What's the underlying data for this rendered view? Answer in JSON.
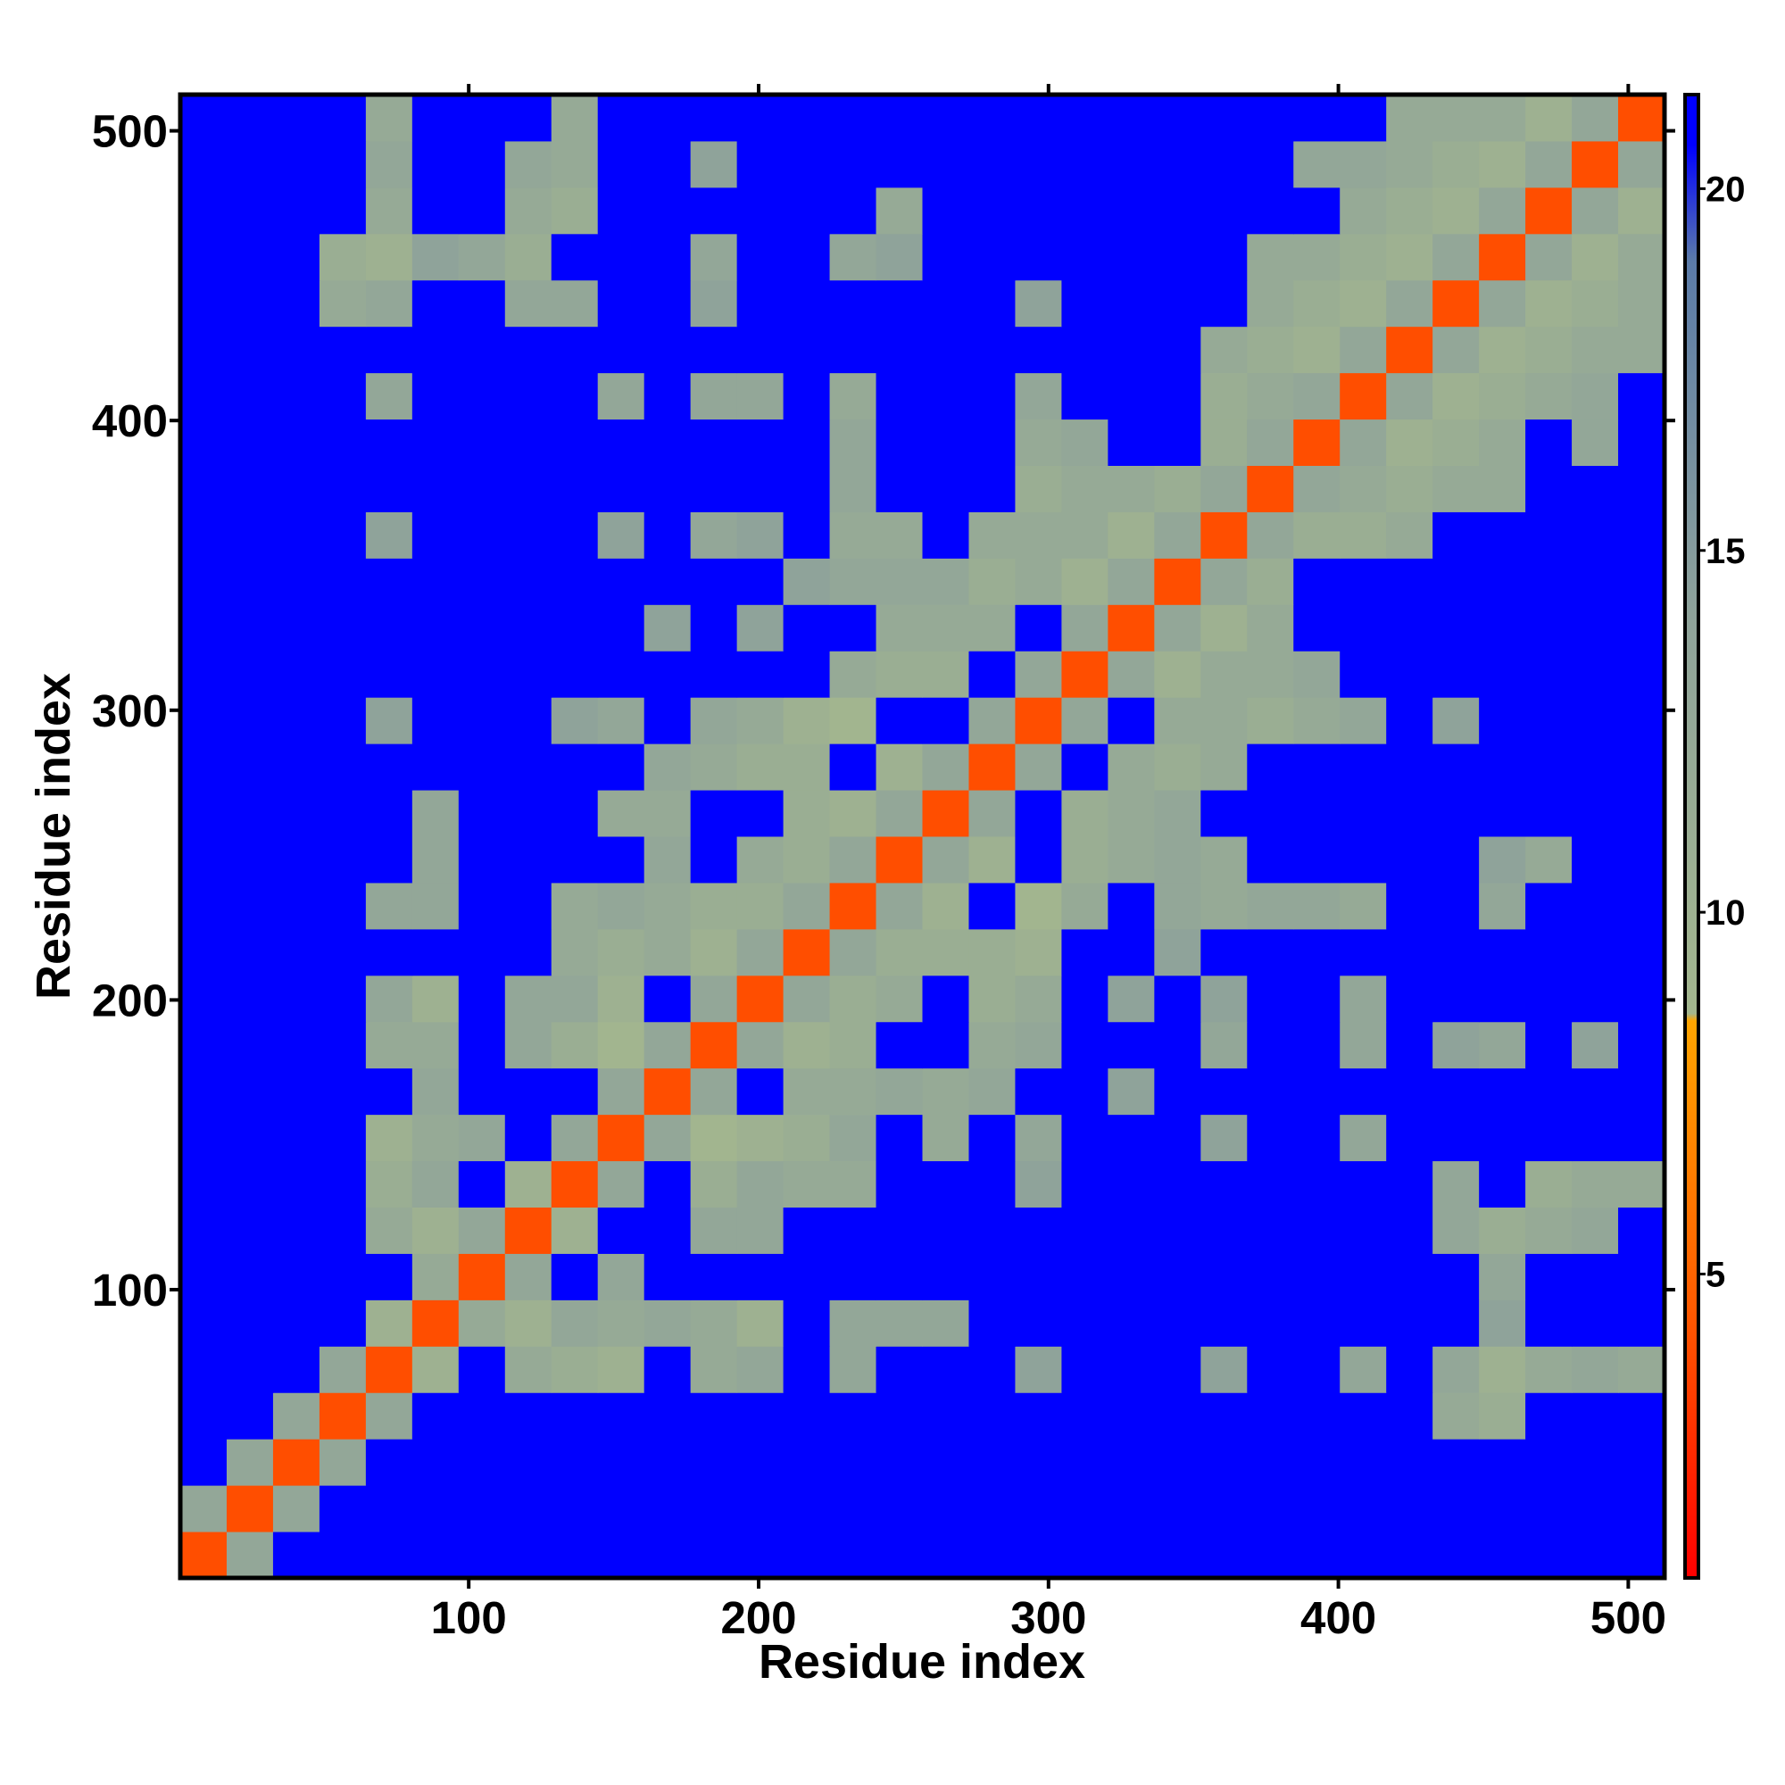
{
  "chart_data": {
    "type": "heatmap",
    "xlabel": "Residue index",
    "ylabel": "Residue index",
    "xlim": [
      0.5,
      512.5
    ],
    "ylim": [
      0.5,
      512.5
    ],
    "xticks": [
      100,
      200,
      300,
      400,
      500
    ],
    "yticks": [
      100,
      200,
      300,
      400,
      500
    ],
    "x_bins": [
      0.5,
      16.5,
      32.5,
      48.5,
      64.5,
      80.5,
      96.5,
      112.5,
      128.5,
      144.5,
      160.5,
      176.5,
      192.5,
      208.5,
      224.5,
      240.5,
      256.5,
      272.5,
      288.5,
      304.5,
      320.5,
      336.5,
      352.5,
      368.5,
      384.5,
      400.5,
      416.5,
      432.5,
      448.5,
      464.5,
      480.5,
      496.5,
      512.5
    ],
    "y_bins": [
      0.5,
      16.5,
      32.5,
      48.5,
      64.5,
      80.5,
      96.5,
      112.5,
      128.5,
      144.5,
      160.5,
      176.5,
      192.5,
      208.5,
      224.5,
      240.5,
      256.5,
      272.5,
      288.5,
      304.5,
      320.5,
      336.5,
      352.5,
      368.5,
      384.5,
      400.5,
      416.5,
      432.5,
      448.5,
      464.5,
      480.5,
      496.5,
      512.5
    ],
    "colorbar": {
      "clim": [
        0.8,
        21.3
      ],
      "ticks": [
        5,
        10,
        15,
        20
      ],
      "stops": [
        [
          0.8,
          "#ff0000"
        ],
        [
          4.5,
          "#ff5a00"
        ],
        [
          8.5,
          "#ffa500"
        ],
        [
          8.6,
          "#a3b68e"
        ],
        [
          14,
          "#8fa39a"
        ],
        [
          19,
          "#5b7ba8"
        ],
        [
          20.6,
          "#0000ff"
        ]
      ]
    },
    "z": [
      [
        4,
        13,
        21,
        21,
        21,
        21,
        21,
        21,
        21,
        21,
        21,
        21,
        21,
        21,
        21,
        21,
        21,
        21,
        21,
        21,
        21,
        21,
        21,
        21,
        21,
        21,
        21,
        21,
        21,
        21,
        21,
        21
      ],
      [
        13,
        4,
        13,
        21,
        21,
        21,
        21,
        21,
        21,
        21,
        21,
        21,
        21,
        21,
        21,
        21,
        21,
        21,
        21,
        21,
        21,
        21,
        21,
        21,
        21,
        21,
        21,
        21,
        21,
        21,
        21,
        21
      ],
      [
        21,
        13,
        4,
        13,
        21,
        21,
        21,
        21,
        21,
        21,
        21,
        21,
        21,
        21,
        21,
        21,
        21,
        21,
        21,
        21,
        21,
        21,
        21,
        21,
        21,
        21,
        21,
        21,
        21,
        21,
        21,
        21
      ],
      [
        21,
        21,
        13,
        4,
        13,
        21,
        21,
        21,
        21,
        21,
        21,
        21,
        21,
        21,
        21,
        21,
        21,
        21,
        21,
        21,
        21,
        21,
        21,
        21,
        21,
        21,
        21,
        12,
        11,
        21,
        21,
        21
      ],
      [
        21,
        21,
        21,
        13,
        4,
        10,
        21,
        12,
        11,
        10,
        21,
        12,
        13,
        21,
        13,
        21,
        21,
        21,
        14,
        21,
        21,
        21,
        14,
        21,
        21,
        13,
        21,
        13,
        10,
        12,
        13,
        12
      ],
      [
        21,
        21,
        21,
        21,
        10,
        4,
        12,
        10,
        13,
        12,
        13,
        12,
        10,
        21,
        13,
        13,
        13,
        21,
        21,
        21,
        21,
        21,
        21,
        21,
        21,
        21,
        21,
        21,
        14,
        21,
        21,
        21
      ],
      [
        21,
        21,
        21,
        21,
        21,
        12,
        4,
        13,
        21,
        13,
        21,
        21,
        21,
        21,
        21,
        21,
        21,
        21,
        21,
        21,
        21,
        21,
        21,
        21,
        21,
        21,
        21,
        21,
        13,
        21,
        21,
        21
      ],
      [
        21,
        21,
        21,
        21,
        12,
        10,
        13,
        4,
        10,
        21,
        21,
        13,
        13,
        21,
        21,
        21,
        21,
        21,
        21,
        21,
        21,
        21,
        21,
        21,
        21,
        21,
        21,
        13,
        11,
        12,
        13,
        21
      ],
      [
        21,
        21,
        21,
        21,
        11,
        13,
        21,
        10,
        4,
        13,
        21,
        11,
        13,
        12,
        12,
        21,
        21,
        21,
        14,
        21,
        21,
        21,
        21,
        21,
        21,
        21,
        21,
        13,
        21,
        11,
        12,
        12
      ],
      [
        21,
        21,
        21,
        21,
        10,
        12,
        13,
        21,
        13,
        4,
        13,
        9,
        10,
        11,
        13,
        21,
        12,
        21,
        13,
        21,
        21,
        21,
        14,
        21,
        21,
        13,
        21,
        21,
        21,
        21,
        21,
        21
      ],
      [
        21,
        21,
        21,
        21,
        21,
        13,
        21,
        21,
        21,
        13,
        4,
        13,
        21,
        12,
        12,
        13,
        12,
        13,
        21,
        21,
        14,
        21,
        21,
        21,
        21,
        21,
        21,
        21,
        21,
        21,
        21,
        21
      ],
      [
        21,
        21,
        21,
        21,
        12,
        12,
        21,
        13,
        11,
        9,
        13,
        4,
        13,
        10,
        11,
        21,
        21,
        12,
        13,
        21,
        21,
        21,
        13,
        21,
        21,
        13,
        21,
        14,
        13,
        21,
        14,
        21
      ],
      [
        21,
        21,
        21,
        21,
        13,
        10,
        21,
        13,
        13,
        10,
        21,
        13,
        4,
        13,
        11,
        12,
        21,
        11,
        12,
        21,
        14,
        21,
        14,
        21,
        21,
        13,
        21,
        21,
        21,
        21,
        21,
        21
      ],
      [
        21,
        21,
        21,
        21,
        21,
        21,
        21,
        21,
        12,
        11,
        12,
        10,
        13,
        4,
        13,
        11,
        11,
        11,
        10,
        21,
        21,
        14,
        21,
        21,
        21,
        21,
        21,
        21,
        21,
        21,
        21,
        21
      ],
      [
        21,
        21,
        21,
        21,
        13,
        13,
        21,
        21,
        12,
        13,
        12,
        11,
        11,
        13,
        4,
        13,
        10,
        21,
        9,
        12,
        21,
        13,
        12,
        13,
        13,
        12,
        21,
        21,
        13,
        21,
        21,
        21
      ],
      [
        21,
        21,
        21,
        21,
        21,
        13,
        21,
        21,
        21,
        21,
        13,
        21,
        12,
        11,
        13,
        4,
        13,
        10,
        21,
        11,
        12,
        13,
        12,
        21,
        21,
        21,
        21,
        21,
        14,
        12,
        21,
        21
      ],
      [
        21,
        21,
        21,
        21,
        21,
        13,
        21,
        21,
        21,
        12,
        12,
        21,
        21,
        11,
        10,
        13,
        4,
        13,
        21,
        11,
        12,
        13,
        21,
        21,
        21,
        21,
        21,
        21,
        21,
        21,
        21,
        21
      ],
      [
        21,
        21,
        21,
        21,
        21,
        21,
        21,
        21,
        21,
        21,
        13,
        12,
        11,
        11,
        21,
        10,
        13,
        4,
        13,
        21,
        12,
        11,
        12,
        21,
        21,
        21,
        21,
        21,
        21,
        21,
        21,
        21
      ],
      [
        21,
        21,
        21,
        21,
        14,
        21,
        21,
        21,
        14,
        13,
        21,
        13,
        12,
        10,
        9,
        21,
        21,
        13,
        4,
        13,
        21,
        12,
        12,
        11,
        12,
        13,
        21,
        14,
        21,
        21,
        21,
        21
      ],
      [
        21,
        21,
        21,
        21,
        21,
        21,
        21,
        21,
        21,
        21,
        21,
        21,
        21,
        21,
        12,
        11,
        11,
        21,
        13,
        4,
        13,
        10,
        12,
        12,
        13,
        21,
        21,
        21,
        21,
        21,
        21,
        21
      ],
      [
        21,
        21,
        21,
        21,
        21,
        21,
        21,
        21,
        21,
        21,
        14,
        21,
        14,
        21,
        21,
        12,
        12,
        12,
        21,
        13,
        4,
        13,
        10,
        12,
        21,
        21,
        21,
        21,
        21,
        21,
        21,
        21
      ],
      [
        21,
        21,
        21,
        21,
        21,
        21,
        21,
        21,
        21,
        21,
        21,
        21,
        21,
        14,
        13,
        13,
        13,
        11,
        12,
        10,
        13,
        4,
        13,
        11,
        21,
        21,
        21,
        21,
        21,
        21,
        21,
        21
      ],
      [
        21,
        21,
        21,
        21,
        14,
        21,
        21,
        21,
        21,
        14,
        21,
        13,
        14,
        21,
        12,
        12,
        21,
        12,
        12,
        12,
        10,
        13,
        4,
        13,
        11,
        11,
        12,
        21,
        21,
        21,
        21,
        21
      ],
      [
        21,
        21,
        21,
        21,
        21,
        21,
        21,
        21,
        21,
        21,
        21,
        21,
        21,
        21,
        13,
        21,
        21,
        21,
        11,
        12,
        12,
        11,
        13,
        4,
        13,
        12,
        11,
        12,
        12,
        21,
        21,
        21
      ],
      [
        21,
        21,
        21,
        21,
        21,
        21,
        21,
        21,
        21,
        21,
        21,
        21,
        21,
        21,
        13,
        21,
        21,
        21,
        12,
        13,
        21,
        21,
        11,
        13,
        4,
        13,
        10,
        11,
        12,
        21,
        13,
        21
      ],
      [
        21,
        21,
        21,
        21,
        13,
        21,
        21,
        21,
        21,
        13,
        21,
        13,
        13,
        21,
        12,
        21,
        21,
        21,
        13,
        21,
        21,
        21,
        11,
        12,
        13,
        4,
        13,
        10,
        11,
        12,
        13,
        21
      ],
      [
        21,
        21,
        21,
        21,
        21,
        21,
        21,
        21,
        21,
        21,
        21,
        21,
        21,
        21,
        21,
        21,
        21,
        21,
        21,
        21,
        21,
        21,
        12,
        11,
        10,
        13,
        4,
        13,
        10,
        11,
        12,
        12
      ],
      [
        21,
        21,
        21,
        12,
        13,
        21,
        21,
        13,
        13,
        21,
        21,
        14,
        21,
        21,
        21,
        21,
        21,
        21,
        14,
        21,
        21,
        21,
        21,
        12,
        11,
        10,
        13,
        4,
        13,
        10,
        11,
        12
      ],
      [
        21,
        21,
        21,
        11,
        10,
        14,
        13,
        11,
        21,
        21,
        21,
        13,
        21,
        21,
        13,
        14,
        21,
        21,
        21,
        21,
        21,
        21,
        21,
        12,
        12,
        11,
        10,
        13,
        4,
        13,
        10,
        12
      ],
      [
        21,
        21,
        21,
        21,
        12,
        21,
        21,
        12,
        11,
        21,
        21,
        21,
        21,
        21,
        21,
        12,
        21,
        21,
        21,
        21,
        21,
        21,
        21,
        21,
        21,
        12,
        11,
        10,
        13,
        4,
        13,
        10
      ],
      [
        21,
        21,
        21,
        21,
        13,
        21,
        21,
        13,
        12,
        21,
        21,
        14,
        21,
        21,
        21,
        21,
        21,
        21,
        21,
        21,
        21,
        21,
        21,
        21,
        13,
        13,
        12,
        11,
        10,
        13,
        4,
        13
      ],
      [
        21,
        21,
        21,
        21,
        12,
        21,
        21,
        21,
        12,
        21,
        21,
        21,
        21,
        21,
        21,
        21,
        21,
        21,
        21,
        21,
        21,
        21,
        21,
        21,
        21,
        21,
        12,
        12,
        12,
        10,
        13,
        4
      ]
    ]
  }
}
